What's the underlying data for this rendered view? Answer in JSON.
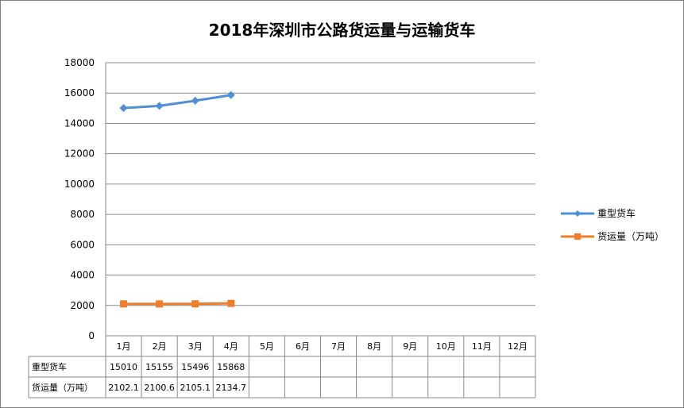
{
  "chart_data": {
    "type": "line",
    "title": "2018年深圳市公路货运量与运输货车",
    "categories": [
      "1月",
      "2月",
      "3月",
      "4月",
      "5月",
      "6月",
      "7月",
      "8月",
      "9月",
      "10月",
      "11月",
      "12月"
    ],
    "ylim": [
      0,
      18000
    ],
    "yticks": [
      "0",
      "2000",
      "4000",
      "6000",
      "8000",
      "10000",
      "12000",
      "14000",
      "16000",
      "18000"
    ],
    "grid": true,
    "legend_position": "right",
    "series": [
      {
        "name": "重型货车",
        "values": [
          15010,
          15155,
          15496,
          15868,
          null,
          null,
          null,
          null,
          null,
          null,
          null,
          null
        ],
        "labels": [
          "15010",
          "15155",
          "15496",
          "15868",
          "",
          "",
          "",
          "",
          "",
          "",
          "",
          ""
        ],
        "color": "#4f8fd6",
        "marker": "diamond"
      },
      {
        "name": "货运量（万吨）",
        "values": [
          2102.1,
          2100.6,
          2105.1,
          2134.7,
          null,
          null,
          null,
          null,
          null,
          null,
          null,
          null
        ],
        "labels": [
          "2102.1",
          "2100.6",
          "2105.1",
          "2134.7",
          "",
          "",
          "",
          "",
          "",
          "",
          "",
          ""
        ],
        "color": "#f07d2a",
        "marker": "square"
      }
    ]
  }
}
